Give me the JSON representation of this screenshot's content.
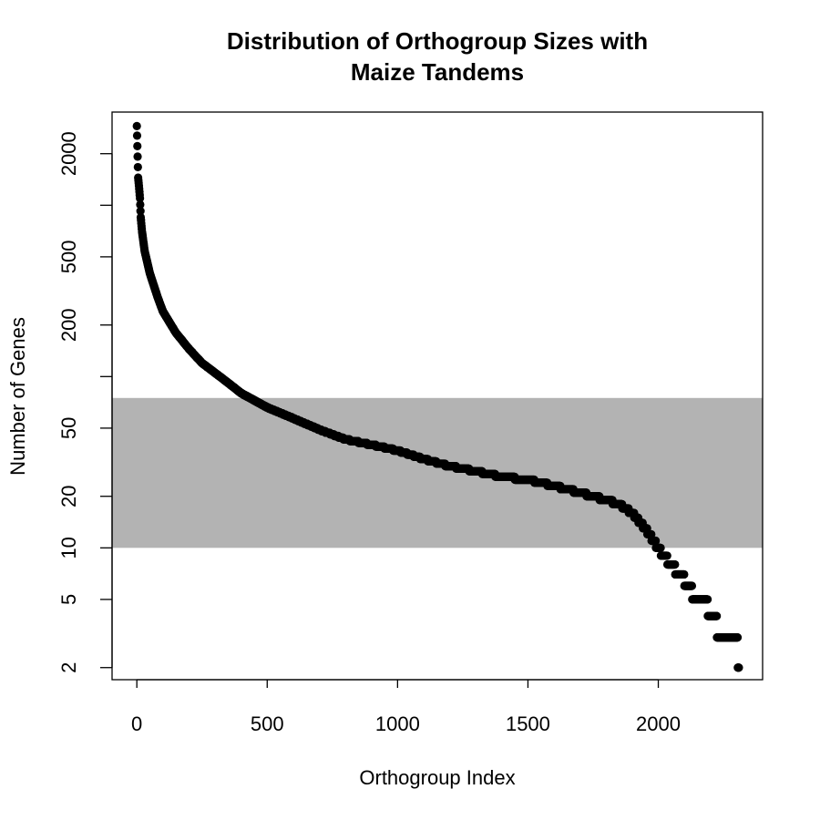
{
  "chart_data": {
    "type": "scatter",
    "title_lines": [
      "Distribution of Orthogroup Sizes with",
      "Maize Tandems"
    ],
    "xlabel": "Orthogroup Index",
    "ylabel": "Number of Genes",
    "y_scale": "log",
    "xlim": [
      -95,
      2400
    ],
    "ylim": [
      1.7,
      3500
    ],
    "x_ticks": [
      0,
      500,
      1000,
      1500,
      2000
    ],
    "x_tick_labels": [
      "0",
      "500",
      "1000",
      "1500",
      "2000"
    ],
    "y_ticks": [
      2,
      5,
      10,
      20,
      50,
      200,
      500,
      2000
    ],
    "y_tick_labels": [
      "2",
      "5",
      "10",
      "20",
      "50",
      "200",
      "500",
      "2000"
    ],
    "y_minor_ticks": [
      100,
      1000
    ],
    "highlight_band": {
      "y_from": 10,
      "y_to": 75,
      "color": "#b3b3b3"
    },
    "grid": false,
    "legend": "none",
    "point_color": "#000000",
    "n_points": 2310,
    "series_profile": [
      [
        0,
        2900
      ],
      [
        1,
        2550
      ],
      [
        5,
        1450
      ],
      [
        8,
        1300
      ],
      [
        12,
        1100
      ],
      [
        15,
        850
      ],
      [
        20,
        700
      ],
      [
        30,
        540
      ],
      [
        50,
        400
      ],
      [
        80,
        290
      ],
      [
        100,
        240
      ],
      [
        150,
        180
      ],
      [
        200,
        145
      ],
      [
        250,
        120
      ],
      [
        300,
        105
      ],
      [
        350,
        92
      ],
      [
        400,
        80
      ],
      [
        500,
        66
      ],
      [
        600,
        57
      ],
      [
        700,
        49
      ],
      [
        800,
        43
      ],
      [
        900,
        40
      ],
      [
        1000,
        37
      ],
      [
        1100,
        33
      ],
      [
        1200,
        30
      ],
      [
        1300,
        28
      ],
      [
        1400,
        26
      ],
      [
        1500,
        25
      ],
      [
        1600,
        23
      ],
      [
        1700,
        21
      ],
      [
        1800,
        19
      ],
      [
        1850,
        18
      ],
      [
        1900,
        16
      ],
      [
        1950,
        13
      ],
      [
        2000,
        10
      ],
      [
        2020,
        9
      ],
      [
        2050,
        8
      ],
      [
        2080,
        7
      ],
      [
        2120,
        6
      ],
      [
        2140,
        5
      ],
      [
        2180,
        5
      ],
      [
        2200,
        4
      ],
      [
        2220,
        4
      ],
      [
        2230,
        3
      ],
      [
        2300,
        3
      ],
      [
        2310,
        2
      ]
    ]
  }
}
